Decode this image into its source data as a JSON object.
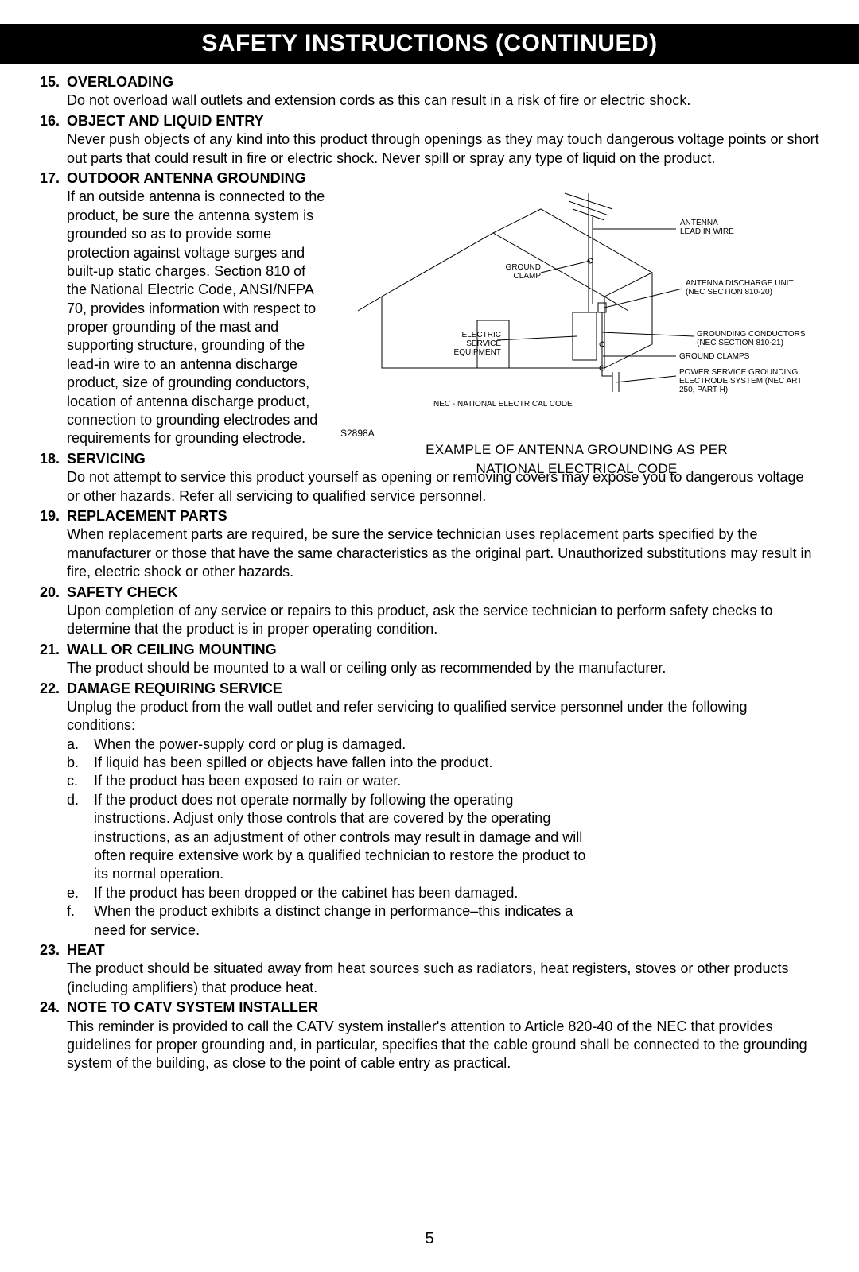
{
  "header": "SAFETY INSTRUCTIONS (CONTINUED)",
  "page_number": "5",
  "items": [
    {
      "num": "15.",
      "title": "OVERLOADING",
      "body": "Do not overload wall outlets and extension cords as this can result in a risk of fire or electric shock."
    },
    {
      "num": "16.",
      "title": "OBJECT AND LIQUID ENTRY",
      "body": "Never push objects of any kind into this product through openings as they may touch dangerous voltage points or short out parts that could result in fire or electric shock. Never spill or spray any type of liquid on the product."
    },
    {
      "num": "17.",
      "title": "OUTDOOR ANTENNA GROUNDING",
      "body": "If an outside antenna is connected to the product, be sure the antenna system is grounded so as to provide some protection against voltage surges and built-up static charges. Section 810 of the National Electric Code, ANSI/NFPA 70, provides information with respect to proper grounding of the mast and supporting structure, grounding of the lead-in wire to an antenna discharge product, size of grounding conductors, location of antenna discharge product, connection to grounding electrodes and requirements for grounding electrode.",
      "narrow": true
    },
    {
      "num": "18.",
      "title": "SERVICING",
      "body": "Do not attempt to service this product yourself as opening or removing covers may expose you to dangerous voltage or other hazards. Refer all servicing to qualified service personnel."
    },
    {
      "num": "19.",
      "title": "REPLACEMENT PARTS",
      "body": "When replacement parts are required, be sure the service technician uses replacement parts specified by the manufacturer or those that have the same characteristics as the original part. Unauthorized substitutions may result in fire, electric shock or other hazards."
    },
    {
      "num": "20.",
      "title": "SAFETY CHECK",
      "body": "Upon completion of any service or repairs to this product, ask the service technician to perform safety checks to determine that the product is in proper operating condition."
    },
    {
      "num": "21.",
      "title": "WALL OR CEILING MOUNTING",
      "body": "The product should be mounted to a wall or ceiling only as recommended by the manufacturer."
    },
    {
      "num": "22.",
      "title": "DAMAGE REQUIRING SERVICE",
      "body": "Unplug the product from the wall outlet and refer servicing to qualified service personnel under the following conditions:",
      "sub": [
        {
          "l": "a.",
          "t": "When the power-supply cord or plug is damaged."
        },
        {
          "l": "b.",
          "t": "If liquid has been spilled or objects have fallen into the product."
        },
        {
          "l": "c.",
          "t": "If the product has been exposed to rain or water."
        },
        {
          "l": "d.",
          "t": "If the product does not operate normally by following the operating instructions. Adjust only those controls that are covered by the operating instructions, as an adjustment of other controls may result in damage and will often require extensive work by a qualified technician to restore the product to its normal operation.",
          "narrow": true
        },
        {
          "l": "e.",
          "t": "If the product has been dropped or the cabinet has been damaged."
        },
        {
          "l": "f.",
          "t": "When the product exhibits a distinct change in performance–this indicates a need for service.",
          "narrow": true
        }
      ]
    },
    {
      "num": "23.",
      "title": "HEAT",
      "body": "The product should be situated away from heat sources such as radiators, heat registers, stoves or other products (including amplifiers) that produce heat."
    },
    {
      "num": "24.",
      "title": "NOTE TO CATV SYSTEM INSTALLER",
      "body": "This reminder is provided to call the CATV system installer's attention to Article 820-40 of the NEC that provides guidelines for proper grounding and, in particular, specifies that the cable ground shall be connected to the grounding system of the building, as close to the point of cable entry as practical."
    }
  ],
  "figure": {
    "ref": "S2898A",
    "caption_line1": "EXAMPLE OF ANTENNA GROUNDING AS PER",
    "caption_line2": "NATIONAL ELECTRICAL CODE",
    "labels": {
      "antenna_lead": "ANTENNA LEAD IN WIRE",
      "ground_clamp": "GROUND CLAMP",
      "antenna_discharge": "ANTENNA DISCHARGE UNIT (NEC SECTION 810-20)",
      "electric_service": "ELECTRIC SERVICE EQUIPMENT",
      "grounding_conductors": "GROUNDING CONDUCTORS (NEC SECTION 810-21)",
      "ground_clamps": "GROUND CLAMPS",
      "power_service": "POWER SERVICE GROUNDING ELECTRODE SYSTEM (NEC ART 250, PART H)",
      "nec": "NEC - NATIONAL ELECTRICAL CODE"
    },
    "stroke": "#000000",
    "line_width": 1
  }
}
